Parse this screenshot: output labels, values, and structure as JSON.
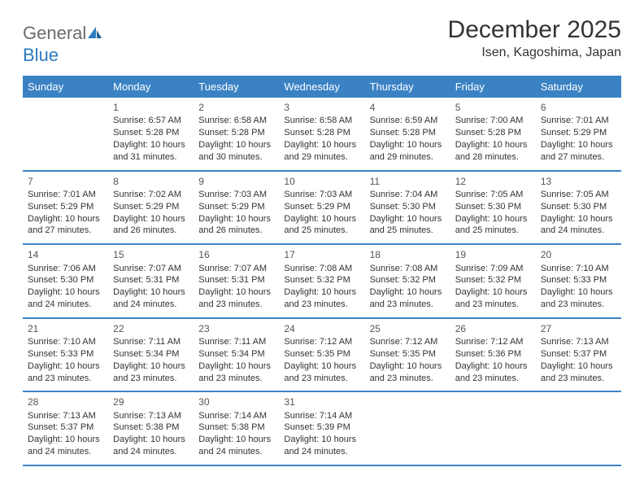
{
  "logo": {
    "word1": "General",
    "word2": "Blue"
  },
  "title": "December 2025",
  "location": "Isen, Kagoshima, Japan",
  "colors": {
    "header_bg": "#3b82c4",
    "header_text": "#ffffff",
    "border": "#3b82c4",
    "body_text": "#333333",
    "logo_gray": "#6b6b6b",
    "logo_blue": "#2b7bbf"
  },
  "dayNames": [
    "Sunday",
    "Monday",
    "Tuesday",
    "Wednesday",
    "Thursday",
    "Friday",
    "Saturday"
  ],
  "weeks": [
    [
      null,
      {
        "n": "1",
        "sunrise": "6:57 AM",
        "sunset": "5:28 PM",
        "daylight": "10 hours and 31 minutes."
      },
      {
        "n": "2",
        "sunrise": "6:58 AM",
        "sunset": "5:28 PM",
        "daylight": "10 hours and 30 minutes."
      },
      {
        "n": "3",
        "sunrise": "6:58 AM",
        "sunset": "5:28 PM",
        "daylight": "10 hours and 29 minutes."
      },
      {
        "n": "4",
        "sunrise": "6:59 AM",
        "sunset": "5:28 PM",
        "daylight": "10 hours and 29 minutes."
      },
      {
        "n": "5",
        "sunrise": "7:00 AM",
        "sunset": "5:28 PM",
        "daylight": "10 hours and 28 minutes."
      },
      {
        "n": "6",
        "sunrise": "7:01 AM",
        "sunset": "5:29 PM",
        "daylight": "10 hours and 27 minutes."
      }
    ],
    [
      {
        "n": "7",
        "sunrise": "7:01 AM",
        "sunset": "5:29 PM",
        "daylight": "10 hours and 27 minutes."
      },
      {
        "n": "8",
        "sunrise": "7:02 AM",
        "sunset": "5:29 PM",
        "daylight": "10 hours and 26 minutes."
      },
      {
        "n": "9",
        "sunrise": "7:03 AM",
        "sunset": "5:29 PM",
        "daylight": "10 hours and 26 minutes."
      },
      {
        "n": "10",
        "sunrise": "7:03 AM",
        "sunset": "5:29 PM",
        "daylight": "10 hours and 25 minutes."
      },
      {
        "n": "11",
        "sunrise": "7:04 AM",
        "sunset": "5:30 PM",
        "daylight": "10 hours and 25 minutes."
      },
      {
        "n": "12",
        "sunrise": "7:05 AM",
        "sunset": "5:30 PM",
        "daylight": "10 hours and 25 minutes."
      },
      {
        "n": "13",
        "sunrise": "7:05 AM",
        "sunset": "5:30 PM",
        "daylight": "10 hours and 24 minutes."
      }
    ],
    [
      {
        "n": "14",
        "sunrise": "7:06 AM",
        "sunset": "5:30 PM",
        "daylight": "10 hours and 24 minutes."
      },
      {
        "n": "15",
        "sunrise": "7:07 AM",
        "sunset": "5:31 PM",
        "daylight": "10 hours and 24 minutes."
      },
      {
        "n": "16",
        "sunrise": "7:07 AM",
        "sunset": "5:31 PM",
        "daylight": "10 hours and 23 minutes."
      },
      {
        "n": "17",
        "sunrise": "7:08 AM",
        "sunset": "5:32 PM",
        "daylight": "10 hours and 23 minutes."
      },
      {
        "n": "18",
        "sunrise": "7:08 AM",
        "sunset": "5:32 PM",
        "daylight": "10 hours and 23 minutes."
      },
      {
        "n": "19",
        "sunrise": "7:09 AM",
        "sunset": "5:32 PM",
        "daylight": "10 hours and 23 minutes."
      },
      {
        "n": "20",
        "sunrise": "7:10 AM",
        "sunset": "5:33 PM",
        "daylight": "10 hours and 23 minutes."
      }
    ],
    [
      {
        "n": "21",
        "sunrise": "7:10 AM",
        "sunset": "5:33 PM",
        "daylight": "10 hours and 23 minutes."
      },
      {
        "n": "22",
        "sunrise": "7:11 AM",
        "sunset": "5:34 PM",
        "daylight": "10 hours and 23 minutes."
      },
      {
        "n": "23",
        "sunrise": "7:11 AM",
        "sunset": "5:34 PM",
        "daylight": "10 hours and 23 minutes."
      },
      {
        "n": "24",
        "sunrise": "7:12 AM",
        "sunset": "5:35 PM",
        "daylight": "10 hours and 23 minutes."
      },
      {
        "n": "25",
        "sunrise": "7:12 AM",
        "sunset": "5:35 PM",
        "daylight": "10 hours and 23 minutes."
      },
      {
        "n": "26",
        "sunrise": "7:12 AM",
        "sunset": "5:36 PM",
        "daylight": "10 hours and 23 minutes."
      },
      {
        "n": "27",
        "sunrise": "7:13 AM",
        "sunset": "5:37 PM",
        "daylight": "10 hours and 23 minutes."
      }
    ],
    [
      {
        "n": "28",
        "sunrise": "7:13 AM",
        "sunset": "5:37 PM",
        "daylight": "10 hours and 24 minutes."
      },
      {
        "n": "29",
        "sunrise": "7:13 AM",
        "sunset": "5:38 PM",
        "daylight": "10 hours and 24 minutes."
      },
      {
        "n": "30",
        "sunrise": "7:14 AM",
        "sunset": "5:38 PM",
        "daylight": "10 hours and 24 minutes."
      },
      {
        "n": "31",
        "sunrise": "7:14 AM",
        "sunset": "5:39 PM",
        "daylight": "10 hours and 24 minutes."
      },
      null,
      null,
      null
    ]
  ],
  "labels": {
    "sunrise": "Sunrise:",
    "sunset": "Sunset:",
    "daylight": "Daylight:"
  }
}
